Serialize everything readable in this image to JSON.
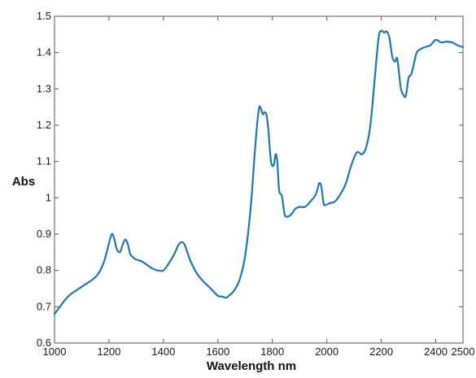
{
  "chart_data": {
    "type": "line",
    "title": "",
    "xlabel": "Wavelength nm",
    "ylabel": "Abs",
    "xlim": [
      1000,
      2500
    ],
    "ylim": [
      0.6,
      1.5
    ],
    "xticks": [
      1000,
      1200,
      1400,
      1600,
      1800,
      2000,
      2200,
      2400,
      2500
    ],
    "xtick_labels": [
      "1000",
      "1200",
      "1400",
      "1600",
      "1800",
      "2000",
      "2200",
      "2400",
      "2500"
    ],
    "yticks": [
      0.6,
      0.7,
      0.8,
      0.9,
      1.0,
      1.1,
      1.2,
      1.3,
      1.4,
      1.5
    ],
    "ytick_labels": [
      "0.6",
      "0.7",
      "0.8",
      "0.9",
      "1",
      "1.1",
      "1.2",
      "1.3",
      "1.4",
      "1.5"
    ],
    "grid": false,
    "colors": {
      "line": "#1f77b4",
      "frame": "#555555",
      "text": "#1a1a1a"
    },
    "series": [
      {
        "x": [
          1000,
          1020,
          1040,
          1060,
          1080,
          1100,
          1120,
          1140,
          1160,
          1180,
          1195,
          1210,
          1220,
          1228,
          1240,
          1250,
          1260,
          1270,
          1278,
          1290,
          1300,
          1320,
          1340,
          1360,
          1380,
          1400,
          1420,
          1440,
          1455,
          1468,
          1478,
          1490,
          1500,
          1520,
          1540,
          1560,
          1580,
          1600,
          1615,
          1630,
          1640,
          1660,
          1680,
          1700,
          1720,
          1735,
          1745,
          1752,
          1758,
          1765,
          1770,
          1778,
          1785,
          1795,
          1805,
          1812,
          1818,
          1825,
          1835,
          1845,
          1855,
          1870,
          1885,
          1900,
          1920,
          1940,
          1960,
          1972,
          1980,
          1988,
          1995,
          2010,
          2030,
          2050,
          2070,
          2090,
          2110,
          2130,
          2145,
          2160,
          2175,
          2190,
          2200,
          2210,
          2220,
          2230,
          2240,
          2250,
          2258,
          2265,
          2272,
          2280,
          2290,
          2300,
          2310,
          2320,
          2330,
          2345,
          2360,
          2380,
          2400,
          2420,
          2440,
          2460,
          2480,
          2500
        ],
        "values": [
          0.68,
          0.7,
          0.72,
          0.735,
          0.745,
          0.755,
          0.765,
          0.775,
          0.79,
          0.82,
          0.86,
          0.9,
          0.885,
          0.86,
          0.85,
          0.87,
          0.885,
          0.87,
          0.845,
          0.835,
          0.83,
          0.825,
          0.815,
          0.805,
          0.8,
          0.8,
          0.82,
          0.845,
          0.87,
          0.878,
          0.87,
          0.845,
          0.825,
          0.795,
          0.775,
          0.76,
          0.745,
          0.73,
          0.728,
          0.725,
          0.73,
          0.745,
          0.775,
          0.84,
          0.97,
          1.12,
          1.21,
          1.25,
          1.245,
          1.23,
          1.235,
          1.23,
          1.19,
          1.1,
          1.09,
          1.12,
          1.1,
          1.02,
          1.005,
          0.955,
          0.948,
          0.955,
          0.97,
          0.975,
          0.975,
          0.99,
          1.01,
          1.04,
          1.03,
          0.985,
          0.98,
          0.985,
          0.99,
          1.01,
          1.04,
          1.09,
          1.125,
          1.12,
          1.14,
          1.2,
          1.32,
          1.44,
          1.46,
          1.455,
          1.458,
          1.44,
          1.39,
          1.375,
          1.385,
          1.345,
          1.3,
          1.285,
          1.28,
          1.33,
          1.34,
          1.37,
          1.4,
          1.41,
          1.415,
          1.42,
          1.435,
          1.428,
          1.43,
          1.428,
          1.42,
          1.415
        ]
      }
    ]
  }
}
